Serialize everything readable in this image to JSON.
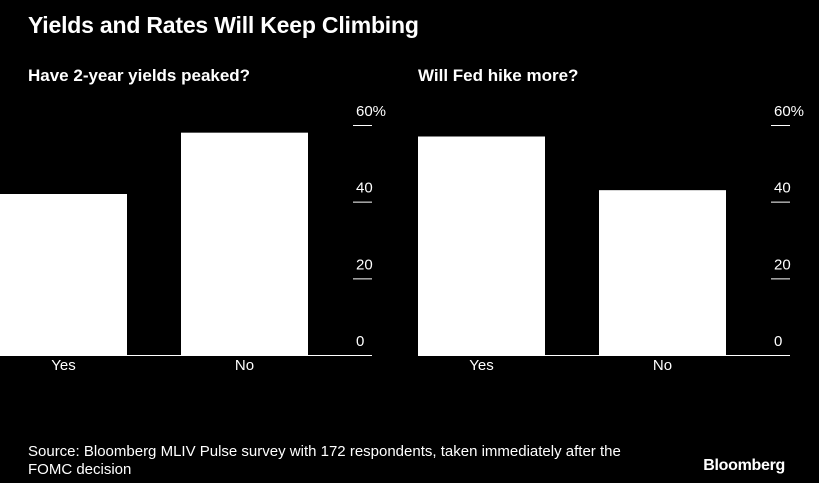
{
  "title": "Yields and Rates Will Keep Climbing",
  "chart_data": [
    {
      "type": "bar",
      "title": "Have 2-year yields peaked?",
      "categories": [
        "Yes",
        "No"
      ],
      "values": [
        42,
        58
      ],
      "ylim": [
        0,
        60
      ],
      "yticks": [
        "0",
        "20",
        "40",
        "60%"
      ],
      "grid": false
    },
    {
      "type": "bar",
      "title": "Will Fed hike more?",
      "categories": [
        "Yes",
        "No"
      ],
      "values": [
        57,
        43
      ],
      "ylim": [
        0,
        60
      ],
      "yticks": [
        "0",
        "20",
        "40",
        "60%"
      ],
      "grid": false
    }
  ],
  "source": "Source: Bloomberg MLIV Pulse survey with 172 respondents, taken immediately after the FOMC decision",
  "brand": "Bloomberg"
}
